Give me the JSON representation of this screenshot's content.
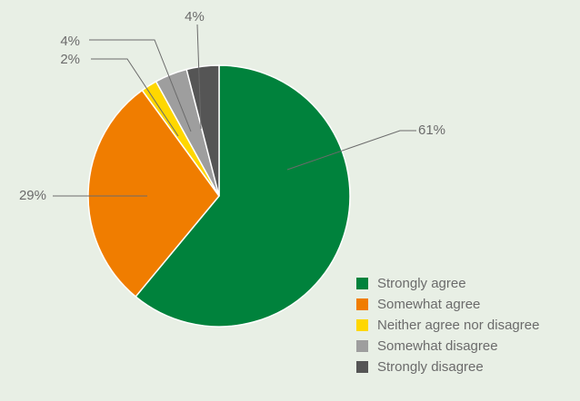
{
  "chart_data": {
    "type": "pie",
    "categories": [
      "Strongly agree",
      "Somewhat agree",
      "Neither agree nor disagree",
      "Somewhat disagree",
      "Strongly disagree"
    ],
    "values": [
      61,
      29,
      2,
      4,
      4
    ],
    "data_labels": [
      "61%",
      "29%",
      "2%",
      "4%",
      "4%"
    ],
    "colors": [
      "#00823c",
      "#f07d00",
      "#ffd700",
      "#9e9e9e",
      "#555555"
    ],
    "legend_position": "bottom-right",
    "title": ""
  }
}
